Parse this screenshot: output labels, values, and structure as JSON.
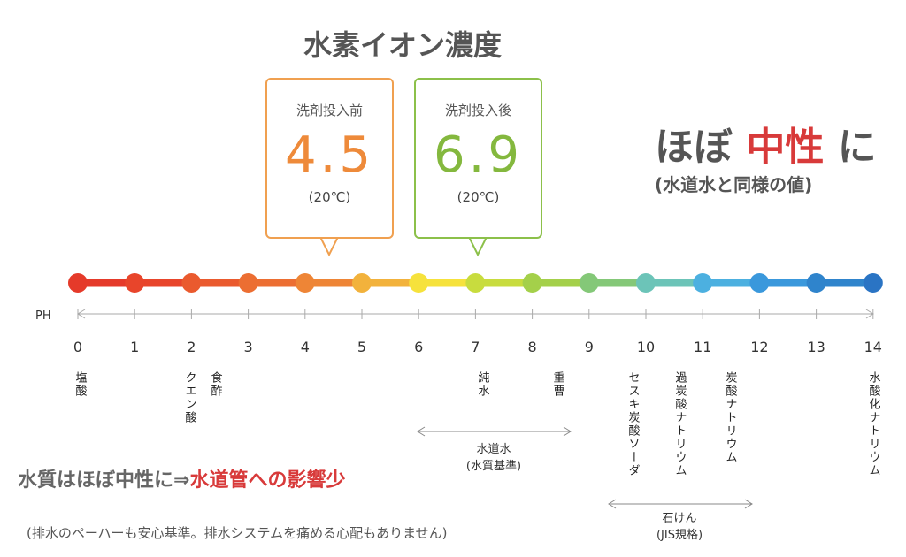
{
  "title": "水素イオン濃度",
  "before": {
    "label": "洗剤投入前",
    "value": "4.5",
    "temp": "(20℃)"
  },
  "after": {
    "label": "洗剤投入後",
    "value": "6.9",
    "temp": "(20℃)"
  },
  "headline": {
    "pre": "ほぼ",
    "accent": "中性",
    "post": "に",
    "note": "(水道水と同様の値)"
  },
  "scale": {
    "axis_label": "PH",
    "ticks": [
      "0",
      "1",
      "2",
      "3",
      "4",
      "5",
      "6",
      "7",
      "8",
      "9",
      "10",
      "11",
      "12",
      "13",
      "14"
    ]
  },
  "substances": [
    "塩酸",
    "クエン酸",
    "食酢",
    "純水",
    "重曹",
    "セスキ炭酸ソーダ",
    "過炭酸ナトリウム",
    "炭酸ナトリウム",
    "水酸化ナトリウム"
  ],
  "ranges": [
    {
      "label": "水道水",
      "sub": "(水質基準)"
    },
    {
      "label": "石けん",
      "sub": "(JIS規格)"
    }
  ],
  "conclusion": {
    "pre": "水質はほぼ中性に⇒",
    "accent": "水道管への影響少"
  },
  "footnote": "(排水のペーハーも安心基準。排水システムを痛める心配もありません)"
}
